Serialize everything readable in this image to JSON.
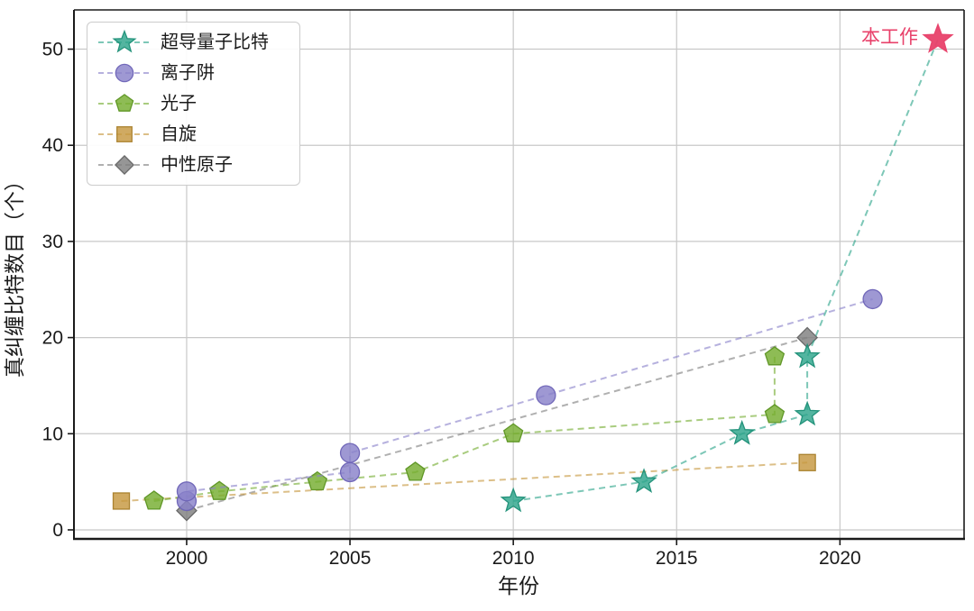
{
  "chart_data": {
    "type": "scatter",
    "title": "",
    "xlabel": "年份",
    "ylabel": "真纠缠比特数目（个）",
    "xlim": [
      1996.55,
      2023.8
    ],
    "ylim": [
      -0.94,
      54.08
    ],
    "x_ticks": [
      2000,
      2005,
      2010,
      2015,
      2020
    ],
    "y_ticks": [
      0,
      10,
      20,
      30,
      40,
      50
    ],
    "grid": true,
    "legend_position": "upper-left",
    "line_style": "dashed",
    "series": [
      {
        "key": "superconducting-qubits",
        "name": "超导量子比特",
        "marker": "star",
        "color": "#2da58b",
        "edge": "#1d8f77",
        "points": [
          [
            2010,
            3
          ],
          [
            2014,
            5
          ],
          [
            2017,
            10
          ],
          [
            2019,
            12
          ],
          [
            2019,
            18
          ],
          [
            2023,
            51
          ]
        ],
        "last_point_is_annotation": true
      },
      {
        "key": "ion-trap",
        "name": "离子阱",
        "marker": "circle",
        "color": "#8981c9",
        "edge": "#6d63b6",
        "points": [
          [
            2000,
            3
          ],
          [
            2000,
            4
          ],
          [
            2005,
            6
          ],
          [
            2005,
            8
          ],
          [
            2011,
            14
          ],
          [
            2021,
            24
          ]
        ],
        "last_point_is_annotation": false
      },
      {
        "key": "photons",
        "name": "光子",
        "marker": "pentagon",
        "color": "#75ad30",
        "edge": "#5c9422",
        "points": [
          [
            1999,
            3
          ],
          [
            2001,
            4
          ],
          [
            2004,
            5
          ],
          [
            2007,
            6
          ],
          [
            2010,
            10
          ],
          [
            2018,
            12
          ],
          [
            2018,
            18
          ]
        ],
        "last_point_is_annotation": false
      },
      {
        "key": "spin",
        "name": "自旋",
        "marker": "square",
        "color": "#c6973f",
        "edge": "#a87e2a",
        "points": [
          [
            1998,
            3
          ],
          [
            2019,
            7
          ]
        ],
        "last_point_is_annotation": false
      },
      {
        "key": "neutral-atoms",
        "name": "中性原子",
        "marker": "diamond",
        "color": "#7f7f7f",
        "edge": "#646464",
        "points": [
          [
            2000,
            2
          ],
          [
            2019,
            20
          ]
        ],
        "last_point_is_annotation": false
      }
    ],
    "annotation": {
      "text": "本工作",
      "x": 2023,
      "y": 51,
      "marker": "star",
      "color": "#e8416a"
    },
    "colors": {
      "grid": "#c8c8c8",
      "spine": "#1a1a1a",
      "tick_label": "#1a1a1a"
    }
  }
}
